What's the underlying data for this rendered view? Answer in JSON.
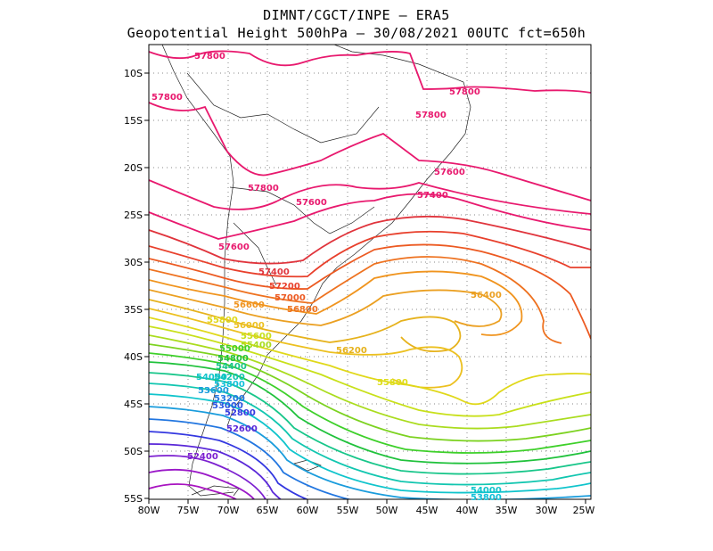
{
  "header": {
    "line1": "DIMNT/CGCT/INPE –  ERA5",
    "line2": "Geopotential Height 500hPa –  30/08/2021 00UTC fct=650h"
  },
  "axes": {
    "x_ticks": [
      "80W",
      "75W",
      "70W",
      "65W",
      "60W",
      "55W",
      "50W",
      "45W",
      "40W",
      "35W",
      "30W",
      "25W"
    ],
    "y_ticks": [
      "10S",
      "15S",
      "20S",
      "25S",
      "30S",
      "35S",
      "40S",
      "45S",
      "50S",
      "55S"
    ]
  },
  "contour_labels": [
    {
      "text": "57800",
      "color": "#e8196e"
    },
    {
      "text": "57800",
      "color": "#e8196e"
    },
    {
      "text": "57800",
      "color": "#e8196e"
    },
    {
      "text": "57800",
      "color": "#e8196e"
    },
    {
      "text": "57800",
      "color": "#e8196e"
    },
    {
      "text": "57600",
      "color": "#e8196e"
    },
    {
      "text": "57600",
      "color": "#e8196e"
    },
    {
      "text": "57600",
      "color": "#e8196e"
    },
    {
      "text": "57400",
      "color": "#e8196e"
    },
    {
      "text": "57400",
      "color": "#e0343c"
    },
    {
      "text": "57200",
      "color": "#e8402c"
    },
    {
      "text": "57000",
      "color": "#ec5a22"
    },
    {
      "text": "56800",
      "color": "#ee7220"
    },
    {
      "text": "56600",
      "color": "#f0941e"
    },
    {
      "text": "56400",
      "color": "#eba022"
    },
    {
      "text": "56200",
      "color": "#e6b21c"
    },
    {
      "text": "56000",
      "color": "#ecc020"
    },
    {
      "text": "55800",
      "color": "#e0d81a"
    },
    {
      "text": "55800",
      "color": "#dede1a"
    },
    {
      "text": "55600",
      "color": "#c8e01a"
    },
    {
      "text": "55400",
      "color": "#aadc1e"
    },
    {
      "text": "55000",
      "color": "#3ed02a"
    },
    {
      "text": "54800",
      "color": "#20c23c"
    },
    {
      "text": "54400",
      "color": "#18c68a"
    },
    {
      "text": "54200",
      "color": "#12c6b0"
    },
    {
      "text": "54000",
      "color": "#10c4cc"
    },
    {
      "text": "53800",
      "color": "#12c0d8"
    },
    {
      "text": "53600",
      "color": "#1a9cdc"
    },
    {
      "text": "53200",
      "color": "#2276e0"
    },
    {
      "text": "53000",
      "color": "#2a56e2"
    },
    {
      "text": "52800",
      "color": "#3438e0"
    },
    {
      "text": "52600",
      "color": "#5a28d8"
    },
    {
      "text": "52400",
      "color": "#7c20d0"
    },
    {
      "text": "54000",
      "color": "#10c4cc"
    },
    {
      "text": "53800",
      "color": "#12c0d8"
    }
  ]
}
